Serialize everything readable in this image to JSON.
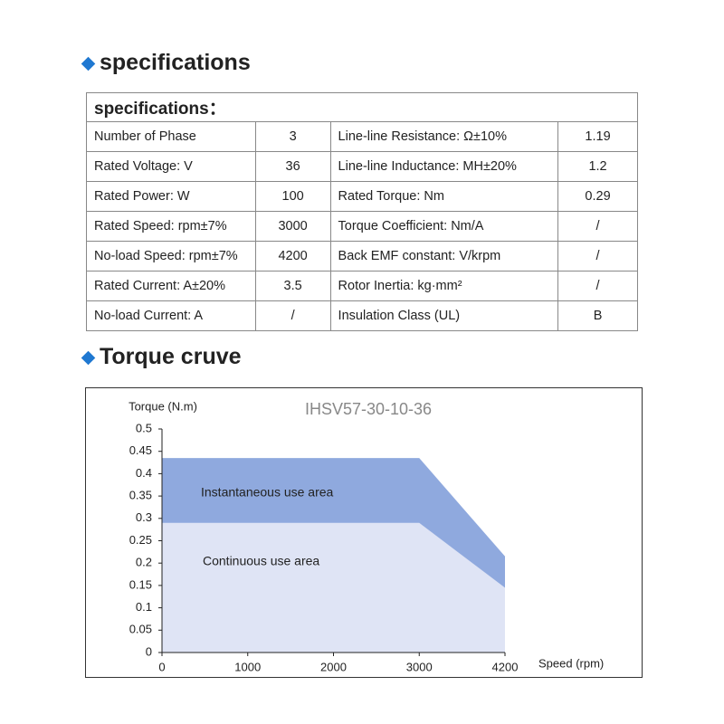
{
  "spec_heading": "specifications",
  "table": {
    "title": "specifications：",
    "rows": [
      [
        "Number of Phase",
        "3",
        "Line-line Resistance: Ω±10%",
        "1.19"
      ],
      [
        "Rated Voltage: V",
        "36",
        "Line-line Inductance: MH±20%",
        "1.2"
      ],
      [
        "Rated Power: W",
        "100",
        "Rated Torque: Nm",
        "0.29"
      ],
      [
        "Rated Speed: rpm±7%",
        "3000",
        "Torque Coefficient: Nm/A",
        "/"
      ],
      [
        "No-load Speed: rpm±7%",
        "4200",
        "Back EMF constant: V/krpm",
        "/"
      ],
      [
        "Rated Current: A±20%",
        "3.5",
        "Rotor Inertia: kg·mm²",
        "/"
      ],
      [
        "No-load Current: A",
        "/",
        "Insulation Class (UL)",
        "B"
      ]
    ]
  },
  "torque_heading": "Torque cruve",
  "chart_data": {
    "type": "area",
    "title": "IHSV57-30-10-36",
    "y_label": "Torque (N.m)",
    "x_label": "Speed (rpm)",
    "categories": [
      "0",
      "1000",
      "2000",
      "3000",
      "4200"
    ],
    "series": [
      {
        "name": "Instantaneous use area",
        "color": "#8fa9de",
        "values": [
          0.435,
          0.435,
          0.435,
          0.435,
          0.215
        ]
      },
      {
        "name": "Continuous use area",
        "color": "#dfe4f5",
        "values": [
          0.29,
          0.29,
          0.29,
          0.29,
          0.145
        ]
      }
    ],
    "ylim": [
      0,
      0.5
    ],
    "yticks": [
      0,
      0.05,
      0.1,
      0.15,
      0.2,
      0.25,
      0.3,
      0.35,
      0.4,
      0.45,
      0.5
    ]
  }
}
